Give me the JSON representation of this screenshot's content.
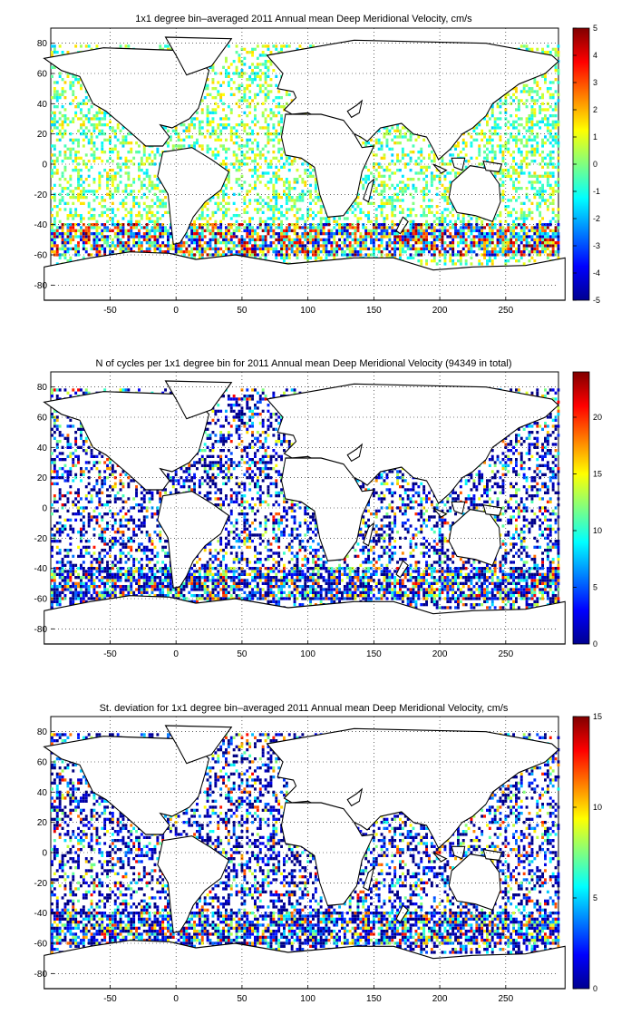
{
  "figure": {
    "x_ticks": [
      "-50",
      "0",
      "50",
      "100",
      "150",
      "200",
      "250"
    ],
    "y_ticks": [
      "80",
      "60",
      "40",
      "20",
      "0",
      "-20",
      "-40",
      "-60",
      "-80"
    ]
  },
  "chart_data": [
    {
      "type": "heatmap",
      "title": "1x1 degree bin–averaged 2011 Annual mean Deep Meridional Velocity, cm/s",
      "xlabel": "",
      "ylabel": "",
      "xlim": [
        -95,
        290
      ],
      "ylim": [
        -90,
        90
      ],
      "grid": true,
      "colormap": "jet",
      "clim": [
        -5,
        5
      ],
      "colorbar_ticks": [
        "5",
        "4",
        "3",
        "2",
        "1",
        "0",
        "-1",
        "-2",
        "-3",
        "-4",
        "-5"
      ],
      "field": "signed velocity with strong values concentrated in the Southern Ocean (40S-60S) and western boundary currents",
      "colors": {
        "ocean_dot_low": "#00008f",
        "ocean_dot_high": "#800000",
        "coastline": "#000000"
      }
    },
    {
      "type": "heatmap",
      "title": "N of cycles per 1x1 degree bin for 2011 Annual mean Deep Meridional Velocity (94349 in total)",
      "xlabel": "",
      "ylabel": "",
      "xlim": [
        -95,
        290
      ],
      "ylim": [
        -90,
        90
      ],
      "grid": true,
      "colormap": "jet",
      "clim": [
        0,
        24
      ],
      "colorbar_ticks": [
        "20",
        "15",
        "10",
        "5",
        "0"
      ],
      "field": "counts mostly 1-5 (blue), highest near Kuroshio and Gulf Stream",
      "colors": {
        "ocean_dot_low": "#00008f",
        "ocean_dot_high": "#800000",
        "coastline": "#000000"
      }
    },
    {
      "type": "heatmap",
      "title": "St. deviation for 1x1 degree bin–averaged 2011 Annual mean Deep Meridional Velocity, cm/s",
      "xlabel": "",
      "ylabel": "",
      "xlim": [
        -95,
        290
      ],
      "ylim": [
        -90,
        90
      ],
      "grid": true,
      "colormap": "jet",
      "clim": [
        0,
        15
      ],
      "colorbar_ticks": [
        "15",
        "10",
        "5",
        "0"
      ],
      "field": "mostly low (blue), higher in Antarctic Circumpolar Current and Kuroshio",
      "colors": {
        "ocean_dot_low": "#00008f",
        "ocean_dot_high": "#800000",
        "coastline": "#000000"
      }
    }
  ]
}
